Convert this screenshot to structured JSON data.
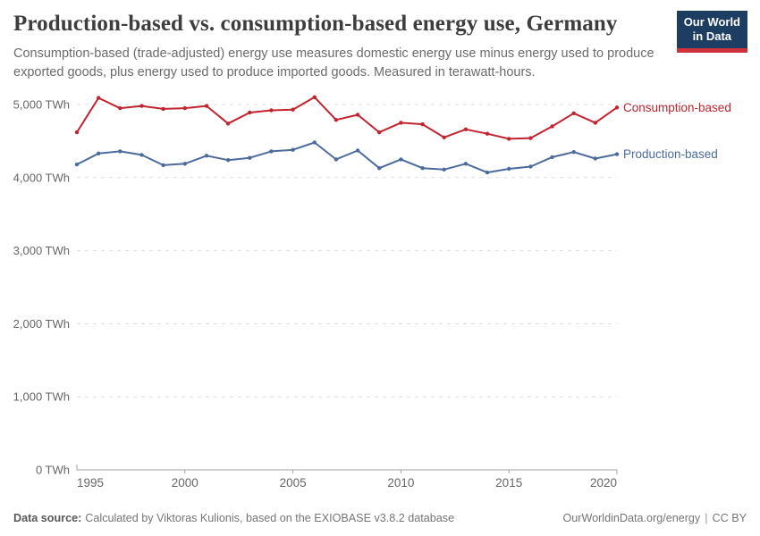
{
  "logo": {
    "line1": "Our World",
    "line2": "in Data"
  },
  "colors": {
    "consumption": "#c1242f",
    "production": "#4c6a9c",
    "logo_bg": "#1d3d63",
    "logo_bar": "#d0323b",
    "grid": "#dddddd",
    "axis": "#a3a3a3",
    "tick_text": "#666666"
  },
  "chart_data": {
    "type": "line",
    "title": "Production-based vs. consumption-based energy use, Germany",
    "subtitle": "Consumption-based (trade-adjusted) energy use measures domestic energy use minus energy used to produce exported goods, plus energy used to produce imported goods. Measured in terawatt-hours.",
    "unit": "TWh",
    "x": [
      1995,
      1996,
      1997,
      1998,
      1999,
      2000,
      2001,
      2002,
      2003,
      2004,
      2005,
      2006,
      2007,
      2008,
      2009,
      2010,
      2011,
      2012,
      2013,
      2014,
      2015,
      2016,
      2017,
      2018,
      2019,
      2020
    ],
    "series": [
      {
        "name": "Consumption-based",
        "color": "#c1242f",
        "values": [
          4620,
          5090,
          4950,
          4980,
          4940,
          4950,
          4980,
          4740,
          4890,
          4920,
          4930,
          5100,
          4790,
          4860,
          4620,
          4750,
          4730,
          4550,
          4660,
          4600,
          4530,
          4540,
          4700,
          4880,
          4750,
          4960
        ]
      },
      {
        "name": "Production-based",
        "color": "#4c6a9c",
        "values": [
          4180,
          4330,
          4360,
          4310,
          4170,
          4190,
          4300,
          4240,
          4270,
          4360,
          4380,
          4480,
          4250,
          4370,
          4130,
          4250,
          4130,
          4110,
          4190,
          4070,
          4120,
          4150,
          4280,
          4350,
          4260,
          4320
        ]
      }
    ],
    "x_ticks": [
      1995,
      2000,
      2005,
      2010,
      2015,
      2020
    ],
    "y_ticks": [
      0,
      1000,
      2000,
      3000,
      4000,
      5000
    ],
    "y_tick_labels": [
      "0 TWh",
      "1,000 TWh",
      "2,000 TWh",
      "3,000 TWh",
      "4,000 TWh",
      "5,000 TWh"
    ],
    "xlim": [
      1995,
      2020
    ],
    "ylim": [
      0,
      5200
    ],
    "grid": "horizontal-dashed",
    "legend_position": "right-end-of-lines"
  },
  "footer": {
    "source_label": "Data source:",
    "source_text": "Calculated by Viktoras Kulionis, based on the EXIOBASE v3.8.2 database",
    "site_text": "OurWorldinData.org/energy",
    "separator": "|",
    "license_text": "CC BY"
  }
}
